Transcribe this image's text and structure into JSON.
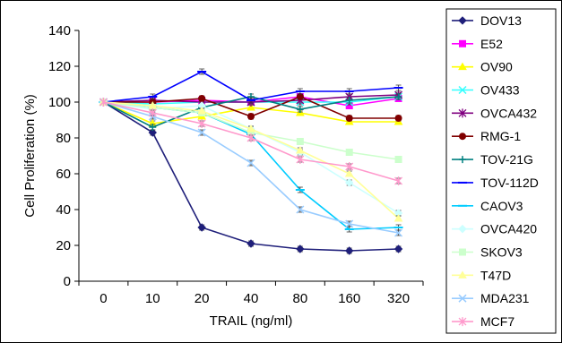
{
  "chart_data": {
    "type": "line",
    "title": "",
    "xlabel": "TRAIL (ng/ml)",
    "ylabel": "Cell Proliferation (%)",
    "categories": [
      "0",
      "10",
      "20",
      "40",
      "80",
      "160",
      "320"
    ],
    "ylim": [
      0,
      140
    ],
    "yticks": [
      0,
      20,
      40,
      60,
      80,
      100,
      120,
      140
    ],
    "grid": false,
    "legend_position": "right",
    "series": [
      {
        "name": "DOV13",
        "color": "#1f1f7a",
        "marker": "diamond",
        "values": [
          100,
          83,
          30,
          21,
          18,
          17,
          18
        ]
      },
      {
        "name": "E52",
        "color": "#ff00ff",
        "marker": "square",
        "values": [
          100,
          100,
          101,
          100,
          103,
          98,
          102
        ]
      },
      {
        "name": "OV90",
        "color": "#ffff00",
        "marker": "triangle",
        "values": [
          100,
          88,
          92,
          97,
          94,
          89,
          89
        ]
      },
      {
        "name": "OV433",
        "color": "#33ffff",
        "marker": "x",
        "values": [
          100,
          99,
          100,
          100,
          100,
          100,
          103
        ]
      },
      {
        "name": "OVCA432",
        "color": "#800080",
        "marker": "star",
        "values": [
          100,
          101,
          100,
          100,
          101,
          103,
          104
        ]
      },
      {
        "name": "RMG-1",
        "color": "#800000",
        "marker": "circle",
        "values": [
          100,
          100,
          102,
          92,
          103,
          91,
          91
        ]
      },
      {
        "name": "TOV-21G",
        "color": "#008080",
        "marker": "plus",
        "values": [
          100,
          86,
          97,
          103,
          96,
          101,
          103
        ]
      },
      {
        "name": "TOV-112D",
        "color": "#0000ff",
        "marker": "dash",
        "values": [
          100,
          103,
          117,
          101,
          106,
          106,
          108
        ]
      },
      {
        "name": "CAOV3",
        "color": "#00ccff",
        "marker": "dash",
        "values": [
          100,
          97,
          94,
          82,
          51,
          29,
          30
        ]
      },
      {
        "name": "OVCA420",
        "color": "#ccffff",
        "marker": "diamond",
        "values": [
          100,
          96,
          98,
          85,
          72,
          55,
          38
        ]
      },
      {
        "name": "SKOV3",
        "color": "#ccffcc",
        "marker": "square",
        "values": [
          100,
          97,
          94,
          83,
          78,
          72,
          68
        ]
      },
      {
        "name": "T47D",
        "color": "#ffff99",
        "marker": "triangle",
        "values": [
          100,
          98,
          95,
          85,
          73,
          60,
          35
        ]
      },
      {
        "name": "MDA231",
        "color": "#99ccff",
        "marker": "x",
        "values": [
          100,
          92,
          83,
          66,
          40,
          32,
          27
        ]
      },
      {
        "name": "MCF7",
        "color": "#ff99cc",
        "marker": "star",
        "values": [
          100,
          94,
          88,
          80,
          68,
          64,
          56
        ]
      }
    ]
  }
}
